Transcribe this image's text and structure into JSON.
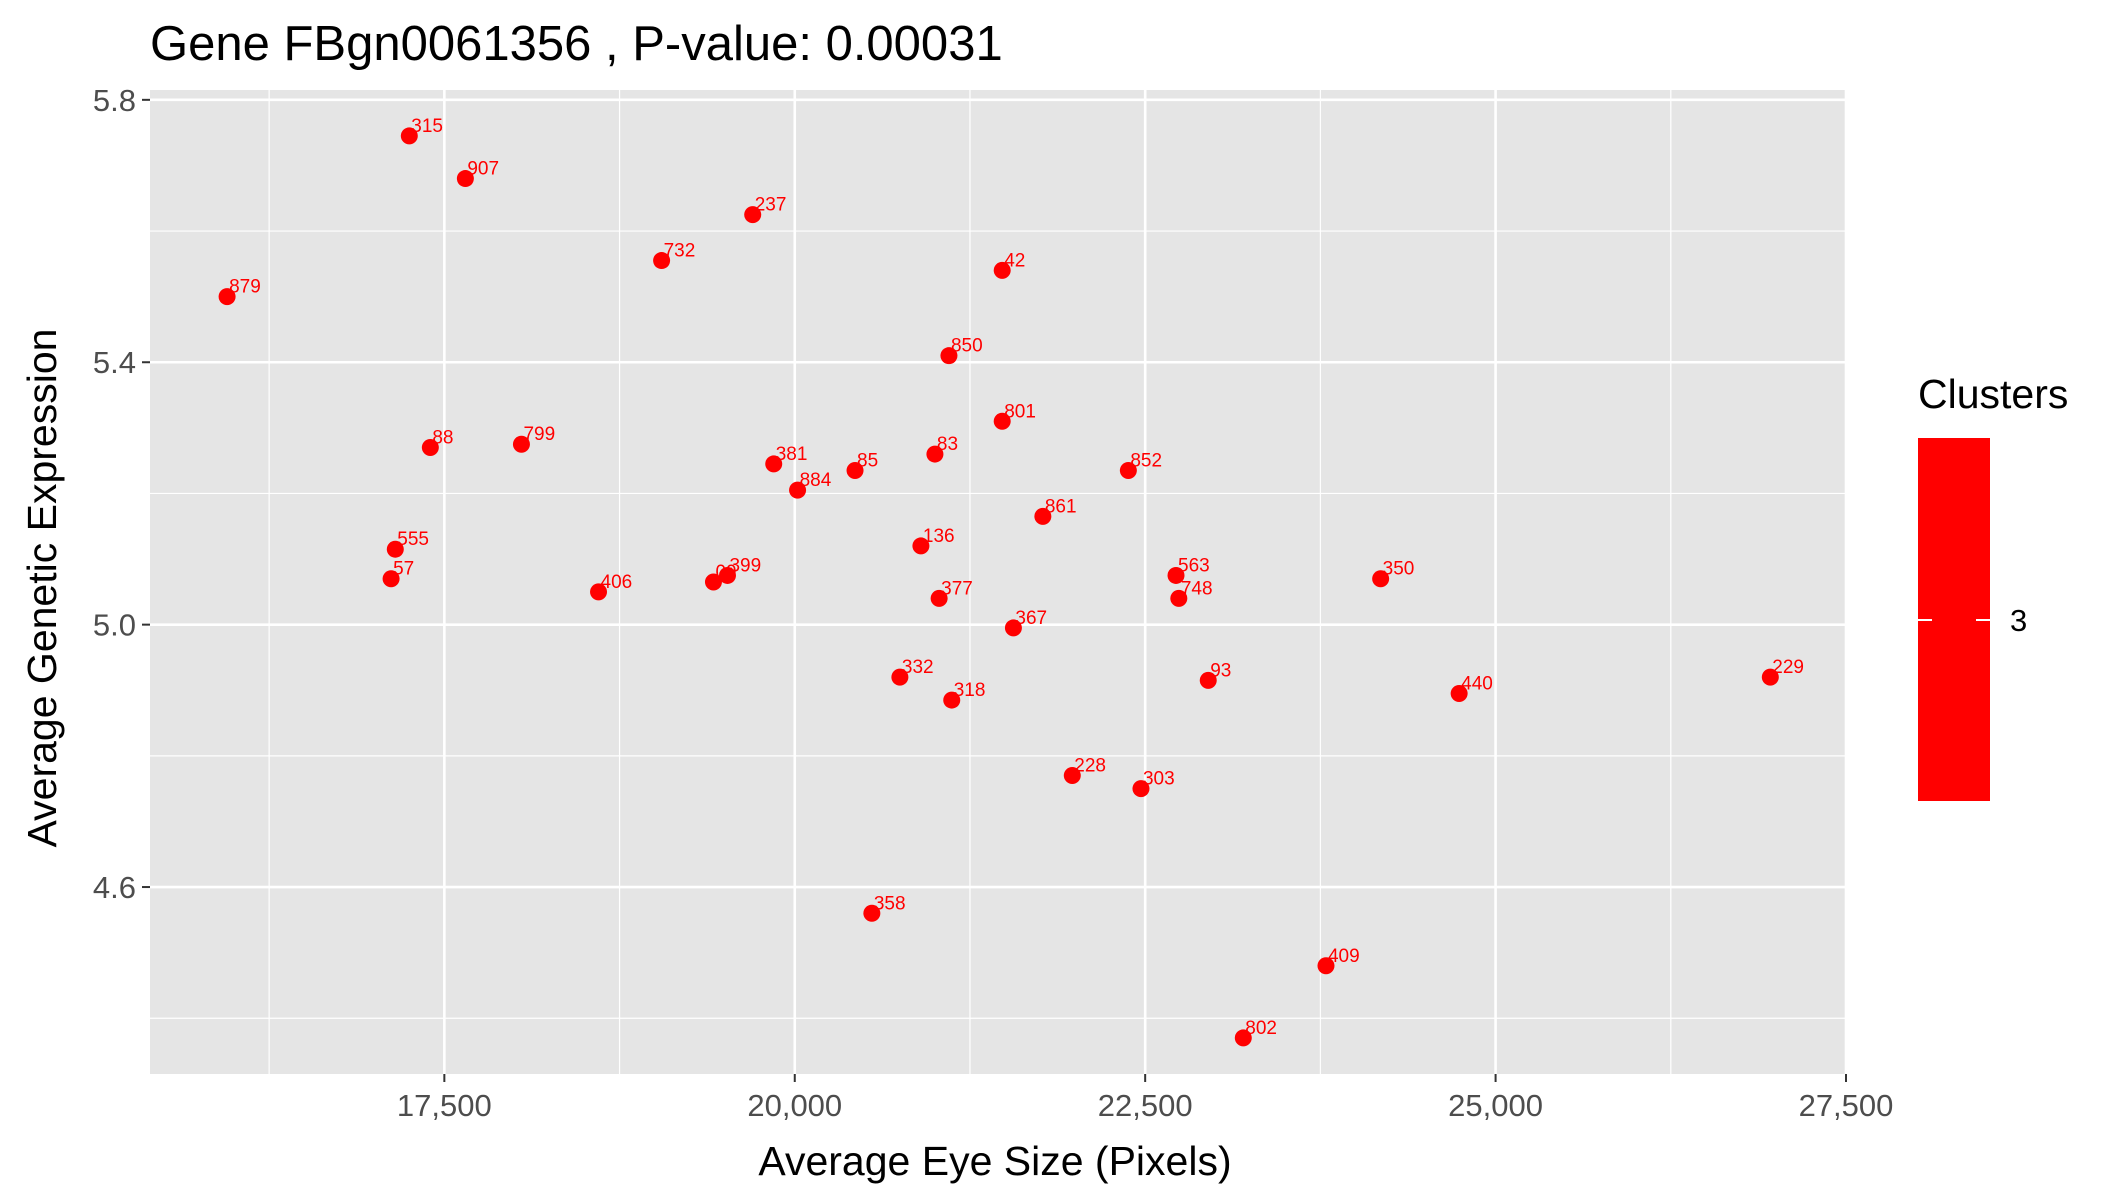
{
  "chart_data": {
    "type": "scatter",
    "title": "Gene FBgn0061356 , P-value: 0.00031",
    "xlabel": "Average Eye Size (Pixels)",
    "ylabel": "Average Genetic Expression",
    "xlim": [
      15400,
      27500
    ],
    "ylim": [
      4.315,
      5.815
    ],
    "x_ticks": [
      17500,
      20000,
      22500,
      25000,
      27500
    ],
    "x_tick_labels": [
      "17,500",
      "20,000",
      "22,500",
      "25,000",
      "27,500"
    ],
    "y_ticks": [
      4.6,
      5.0,
      5.4,
      5.8
    ],
    "y_tick_labels": [
      "4.6",
      "5.0",
      "5.4",
      "5.8"
    ],
    "grid": true,
    "point_color": "#ff0000",
    "panel_background": "#e5e5e5",
    "legend": {
      "title": "Clusters",
      "entries": [
        "3"
      ],
      "color": "#ff0000",
      "position": "right"
    },
    "points": [
      {
        "label": "315",
        "x": 17250,
        "y": 5.745
      },
      {
        "label": "907",
        "x": 17650,
        "y": 5.68
      },
      {
        "label": "237",
        "x": 19700,
        "y": 5.625
      },
      {
        "label": "732",
        "x": 19050,
        "y": 5.555
      },
      {
        "label": "42",
        "x": 21480,
        "y": 5.54
      },
      {
        "label": "879",
        "x": 15950,
        "y": 5.5
      },
      {
        "label": "850",
        "x": 21100,
        "y": 5.41
      },
      {
        "label": "801",
        "x": 21480,
        "y": 5.31
      },
      {
        "label": "88",
        "x": 17400,
        "y": 5.27
      },
      {
        "label": "799",
        "x": 18050,
        "y": 5.275
      },
      {
        "label": "381",
        "x": 19850,
        "y": 5.245
      },
      {
        "label": "85",
        "x": 20430,
        "y": 5.235
      },
      {
        "label": "83",
        "x": 21000,
        "y": 5.26
      },
      {
        "label": "852",
        "x": 22380,
        "y": 5.235
      },
      {
        "label": "884",
        "x": 20020,
        "y": 5.205
      },
      {
        "label": "861",
        "x": 21770,
        "y": 5.165
      },
      {
        "label": "555",
        "x": 17150,
        "y": 5.115
      },
      {
        "label": "57",
        "x": 17120,
        "y": 5.07
      },
      {
        "label": "136",
        "x": 20900,
        "y": 5.12
      },
      {
        "label": "406",
        "x": 18600,
        "y": 5.05
      },
      {
        "label": "399",
        "x": 19520,
        "y": 5.075
      },
      {
        "label": "09",
        "x": 19420,
        "y": 5.065
      },
      {
        "label": "563",
        "x": 22720,
        "y": 5.075
      },
      {
        "label": "350",
        "x": 24180,
        "y": 5.07
      },
      {
        "label": "377",
        "x": 21030,
        "y": 5.04
      },
      {
        "label": "748",
        "x": 22740,
        "y": 5.04
      },
      {
        "label": "367",
        "x": 21560,
        "y": 4.995
      },
      {
        "label": "332",
        "x": 20750,
        "y": 4.92
      },
      {
        "label": "93",
        "x": 22950,
        "y": 4.915
      },
      {
        "label": "318",
        "x": 21120,
        "y": 4.885
      },
      {
        "label": "440",
        "x": 24740,
        "y": 4.895
      },
      {
        "label": "229",
        "x": 26960,
        "y": 4.92
      },
      {
        "label": "228",
        "x": 21980,
        "y": 4.77
      },
      {
        "label": "303",
        "x": 22470,
        "y": 4.75
      },
      {
        "label": "358",
        "x": 20550,
        "y": 4.56
      },
      {
        "label": "409",
        "x": 23790,
        "y": 4.48
      },
      {
        "label": "802",
        "x": 23200,
        "y": 4.37
      }
    ]
  }
}
